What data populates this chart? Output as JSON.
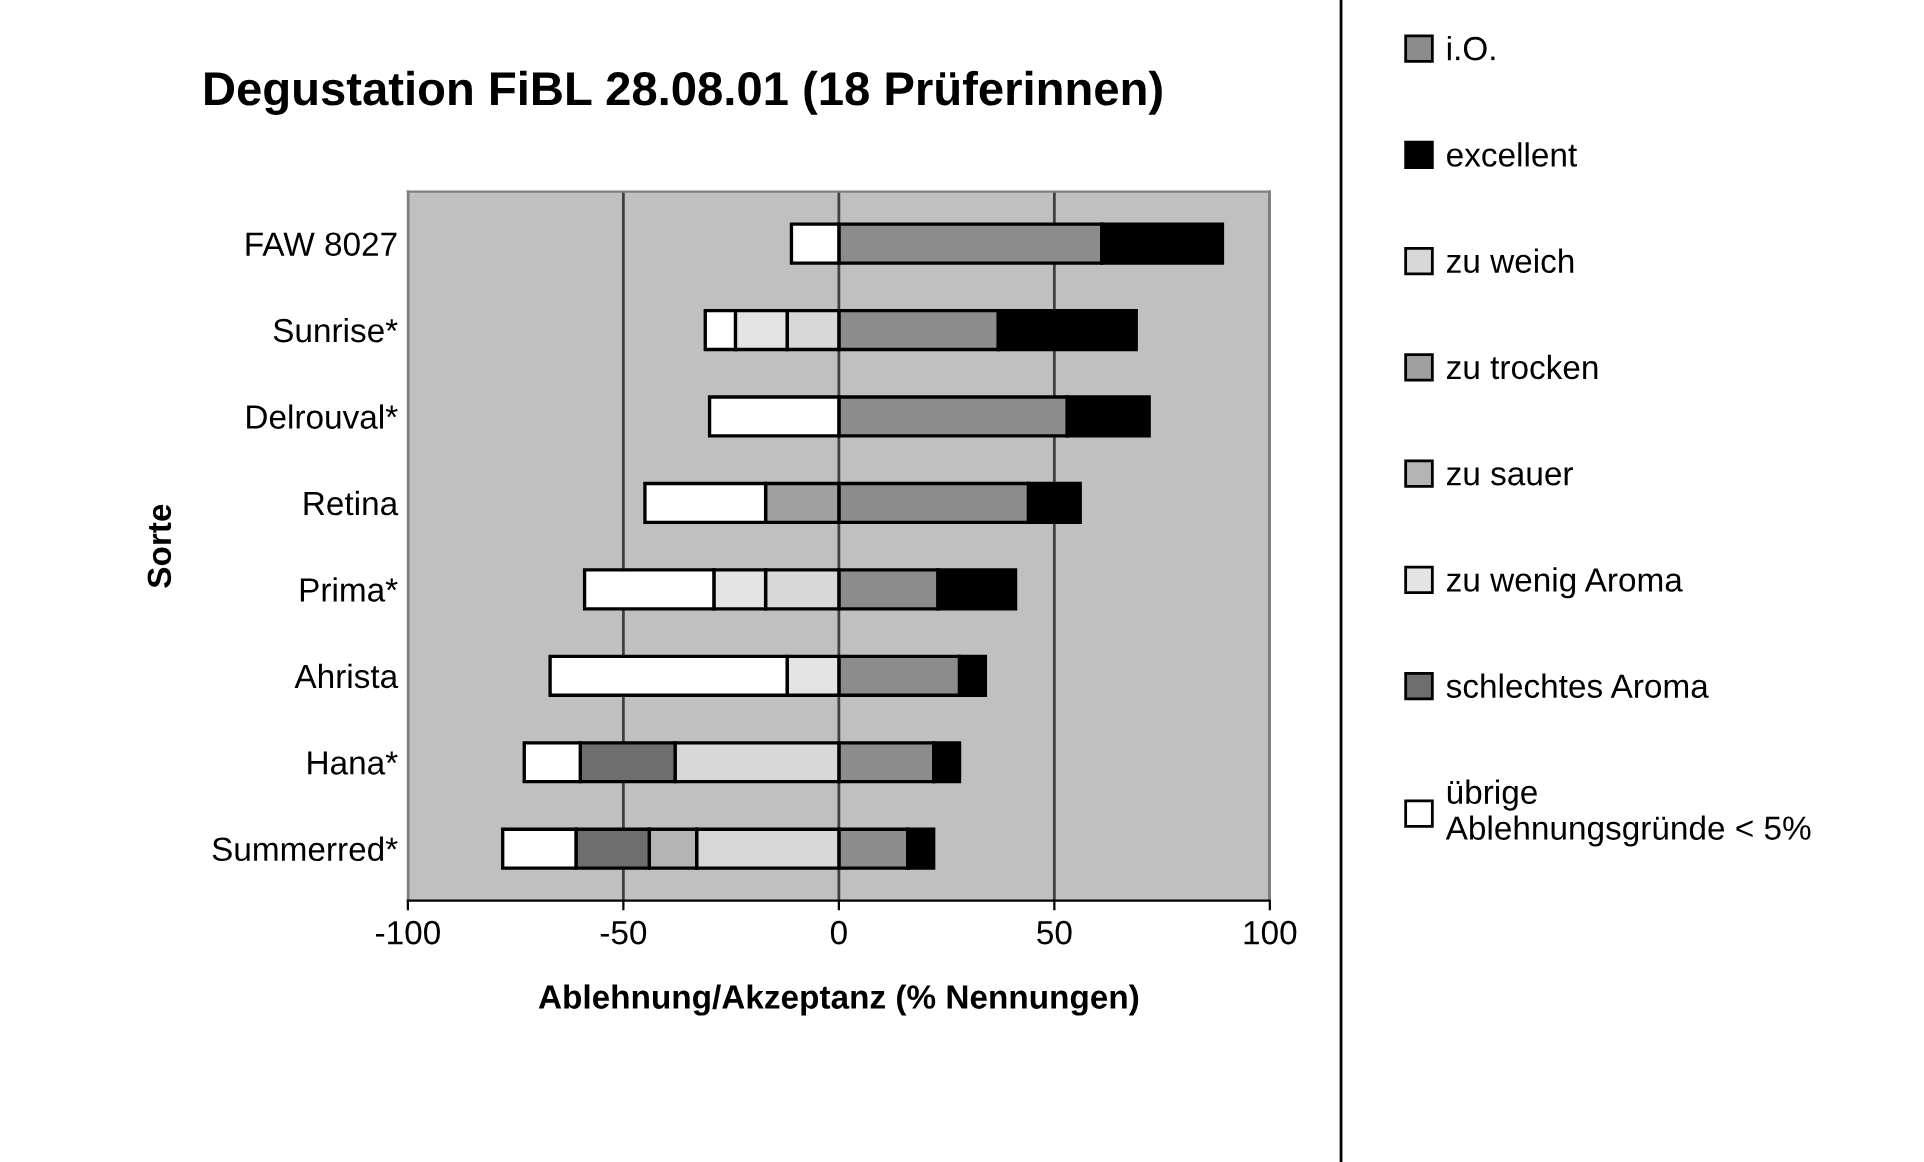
{
  "chart_data": {
    "type": "bar",
    "orientation": "horizontal",
    "stacked": true,
    "title": "Degustation FiBL 28.08.01 (18 Prüferinnen)",
    "xlabel": "Ablehnung/Akzeptanz (% Nennungen)",
    "ylabel": "Sorte",
    "categories": [
      "FAW 8027",
      "Sunrise*",
      "Delrouval*",
      "Retina",
      "Prima*",
      "Ahrista",
      "Hana*",
      "Summerred*"
    ],
    "series": [
      {
        "name": "i.O.",
        "color": "#8c8c8c",
        "values": [
          61,
          37,
          53,
          44,
          23,
          28,
          22,
          16
        ]
      },
      {
        "name": "excellent",
        "color": "#000000",
        "values": [
          28,
          32,
          19,
          12,
          18,
          6,
          6,
          6
        ]
      },
      {
        "name": "zu weich",
        "color": "#d8d8d8",
        "values": [
          null,
          -12,
          null,
          null,
          -17,
          null,
          -38,
          -33
        ]
      },
      {
        "name": "zu trocken",
        "color": "#a0a0a0",
        "values": [
          null,
          null,
          null,
          -17,
          null,
          null,
          null,
          null
        ]
      },
      {
        "name": "zu sauer",
        "color": "#b4b4b4",
        "values": [
          null,
          null,
          null,
          null,
          null,
          null,
          null,
          -11
        ]
      },
      {
        "name": "zu wenig Aroma",
        "color": "#e4e4e4",
        "values": [
          null,
          -12,
          null,
          null,
          -12,
          -12,
          null,
          null
        ]
      },
      {
        "name": "schlechtes Aroma",
        "color": "#6e6e6e",
        "values": [
          null,
          null,
          null,
          null,
          null,
          null,
          -22,
          -17
        ]
      },
      {
        "name": "übrige\nAblehnungsgründe < 5%",
        "color": "#ffffff",
        "values": [
          -11,
          -7,
          -30,
          -28,
          -30,
          -55,
          -13,
          -17
        ]
      }
    ],
    "xlim": [
      -100,
      100
    ],
    "xticks": [
      -100,
      -50,
      0,
      50,
      100
    ],
    "grid": "x",
    "legend": "right"
  }
}
